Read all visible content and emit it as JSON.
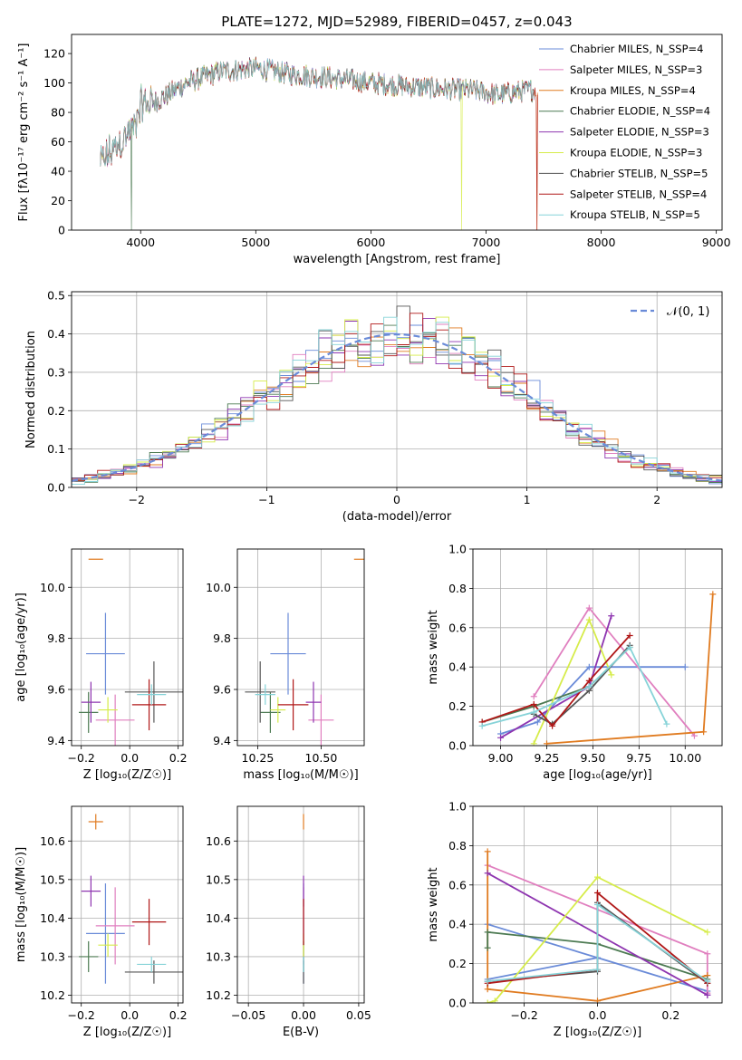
{
  "colors": {
    "Chabrier MILES": "#6a8bd8",
    "Salpeter MILES": "#e07fbf",
    "Kroupa MILES": "#e07b20",
    "Chabrier ELODIE": "#4c7a52",
    "Salpeter ELODIE": "#8e35b0",
    "Kroupa ELODIE": "#d6ec4a",
    "Chabrier STELIB": "#555555",
    "Salpeter STELIB": "#b01818",
    "Kroupa STELIB": "#86d3d8",
    "normal_curve": "#6a8bd8"
  },
  "chart_data": [
    {
      "id": "spectrum",
      "type": "line",
      "title": "PLATE=1272, MJD=52989, FIBERID=0457, z=0.043",
      "xlabel": "wavelength [Angstrom, rest frame]",
      "ylabel": "Flux [fλ10⁻¹⁷ erg cm⁻² s⁻¹ A⁻¹]",
      "xlim": [
        3400,
        9050
      ],
      "ylim": [
        0,
        133
      ],
      "xticks": [
        4000,
        5000,
        6000,
        7000,
        8000,
        9000
      ],
      "yticks": [
        0,
        20,
        40,
        60,
        80,
        100,
        120
      ],
      "legend_position": "upper right",
      "x_range": [
        3650,
        7450
      ],
      "continuum": [
        [
          3650,
          45
        ],
        [
          3800,
          58
        ],
        [
          3950,
          70
        ],
        [
          4000,
          85
        ],
        [
          4150,
          88
        ],
        [
          4400,
          100
        ],
        [
          4700,
          108
        ],
        [
          5000,
          110
        ],
        [
          5300,
          106
        ],
        [
          5600,
          104
        ],
        [
          6000,
          100
        ],
        [
          6300,
          98
        ],
        [
          6600,
          96
        ],
        [
          6900,
          95
        ],
        [
          7100,
          92
        ],
        [
          7450,
          96
        ]
      ],
      "dips": [
        [
          3920,
          0
        ],
        [
          4300,
          70
        ],
        [
          6790,
          0
        ],
        [
          7440,
          0
        ]
      ],
      "series": [
        {
          "name": "Chabrier MILES, N_SSP=4",
          "color": "Chabrier MILES"
        },
        {
          "name": "Salpeter MILES, N_SSP=3",
          "color": "Salpeter MILES"
        },
        {
          "name": "Kroupa MILES, N_SSP=4",
          "color": "Kroupa MILES"
        },
        {
          "name": "Chabrier ELODIE, N_SSP=4",
          "color": "Chabrier ELODIE"
        },
        {
          "name": "Salpeter ELODIE, N_SSP=3",
          "color": "Salpeter ELODIE"
        },
        {
          "name": "Kroupa ELODIE, N_SSP=3",
          "color": "Kroupa ELODIE"
        },
        {
          "name": "Chabrier STELIB, N_SSP=5",
          "color": "Chabrier STELIB"
        },
        {
          "name": "Salpeter STELIB, N_SSP=4",
          "color": "Salpeter STELIB"
        },
        {
          "name": "Kroupa STELIB, N_SSP=5",
          "color": "Kroupa STELIB"
        }
      ]
    },
    {
      "id": "residuals",
      "type": "step",
      "xlabel": "(data-model)/error",
      "ylabel": "Normed distribution",
      "xlim": [
        -2.5,
        2.5
      ],
      "ylim": [
        0,
        0.51
      ],
      "xticks": [
        -2,
        -1,
        0,
        1,
        2
      ],
      "yticks": [
        0.0,
        0.1,
        0.2,
        0.3,
        0.4,
        0.5
      ],
      "grid": true,
      "legend_position": "upper right",
      "normal_label": "𝒩(0, 1)",
      "bin_width": 0.1,
      "series_colors": [
        "Chabrier MILES",
        "Salpeter MILES",
        "Kroupa MILES",
        "Chabrier ELODIE",
        "Salpeter ELODIE",
        "Kroupa ELODIE",
        "Chabrier STELIB",
        "Salpeter STELIB",
        "Kroupa STELIB"
      ]
    },
    {
      "id": "age_vs_Z",
      "type": "errorbar",
      "xlabel": "Z [log₁₀(Z/Z☉)]",
      "ylabel": "age  [log₁₀(age/yr)]",
      "xlim": [
        -0.24,
        0.22
      ],
      "ylim": [
        9.38,
        10.15
      ],
      "xticks": [
        -0.2,
        0.0,
        0.2
      ],
      "yticks": [
        9.4,
        9.6,
        9.8,
        10.0
      ],
      "grid": true,
      "points": [
        {
          "color": "Chabrier MILES",
          "x": -0.1,
          "y": 9.74,
          "xerr": 0.08,
          "yerr": 0.16
        },
        {
          "color": "Salpeter MILES",
          "x": -0.06,
          "y": 9.48,
          "xerr": 0.08,
          "yerr": 0.1
        },
        {
          "color": "Kroupa MILES",
          "x": -0.14,
          "y": 10.11,
          "xerr": 0.03,
          "yerr": 0.0
        },
        {
          "color": "Chabrier ELODIE",
          "x": -0.17,
          "y": 9.51,
          "xerr": 0.04,
          "yerr": 0.08
        },
        {
          "color": "Salpeter ELODIE",
          "x": -0.16,
          "y": 9.55,
          "xerr": 0.04,
          "yerr": 0.08
        },
        {
          "color": "Kroupa ELODIE",
          "x": -0.09,
          "y": 9.52,
          "xerr": 0.04,
          "yerr": 0.05
        },
        {
          "color": "Chabrier STELIB",
          "x": 0.1,
          "y": 9.59,
          "xerr": 0.12,
          "yerr": 0.12
        },
        {
          "color": "Salpeter STELIB",
          "x": 0.08,
          "y": 9.54,
          "xerr": 0.07,
          "yerr": 0.1
        },
        {
          "color": "Kroupa STELIB",
          "x": 0.09,
          "y": 9.58,
          "xerr": 0.06,
          "yerr": 0.04
        }
      ]
    },
    {
      "id": "age_vs_mass",
      "type": "errorbar",
      "xlabel": "mass [log₁₀(M/M☉)]",
      "ylabel": "",
      "xlim": [
        10.17,
        10.67
      ],
      "ylim": [
        9.38,
        10.15
      ],
      "xticks": [
        10.25,
        10.5
      ],
      "yticks": [
        9.4,
        9.6,
        9.8,
        10.0
      ],
      "grid": true,
      "points": [
        {
          "color": "Chabrier MILES",
          "x": 10.37,
          "y": 9.74,
          "xerr": 0.07,
          "yerr": 0.16
        },
        {
          "color": "Salpeter MILES",
          "x": 10.5,
          "y": 9.48,
          "xerr": 0.05,
          "yerr": 0.1
        },
        {
          "color": "Kroupa MILES",
          "x": 10.65,
          "y": 10.11,
          "xerr": 0.02,
          "yerr": 0.0
        },
        {
          "color": "Chabrier ELODIE",
          "x": 10.3,
          "y": 9.51,
          "xerr": 0.04,
          "yerr": 0.08
        },
        {
          "color": "Salpeter ELODIE",
          "x": 10.47,
          "y": 9.55,
          "xerr": 0.03,
          "yerr": 0.08
        },
        {
          "color": "Kroupa ELODIE",
          "x": 10.33,
          "y": 9.52,
          "xerr": 0.03,
          "yerr": 0.05
        },
        {
          "color": "Chabrier STELIB",
          "x": 10.26,
          "y": 9.59,
          "xerr": 0.06,
          "yerr": 0.12
        },
        {
          "color": "Salpeter STELIB",
          "x": 10.39,
          "y": 9.54,
          "xerr": 0.06,
          "yerr": 0.1
        },
        {
          "color": "Kroupa STELIB",
          "x": 10.28,
          "y": 9.58,
          "xerr": 0.04,
          "yerr": 0.04
        }
      ]
    },
    {
      "id": "weight_vs_age",
      "type": "line",
      "xlabel": "age  [log₁₀(age/yr)]",
      "ylabel": "mass weight",
      "xlim": [
        8.85,
        10.2
      ],
      "ylim": [
        0,
        1
      ],
      "xticks": [
        9.0,
        9.25,
        9.5,
        9.75,
        10.0
      ],
      "yticks": [
        0.0,
        0.2,
        0.4,
        0.6,
        0.8,
        1.0
      ],
      "grid": true,
      "series": [
        {
          "color": "Chabrier MILES",
          "x": [
            9.0,
            9.2,
            9.48,
            10.0
          ],
          "y": [
            0.06,
            0.12,
            0.4,
            0.4
          ]
        },
        {
          "color": "Salpeter MILES",
          "x": [
            9.18,
            9.48,
            10.05
          ],
          "y": [
            0.25,
            0.7,
            0.05
          ]
        },
        {
          "color": "Kroupa MILES",
          "x": [
            9.25,
            10.1,
            10.15
          ],
          "y": [
            0.01,
            0.07,
            0.77
          ]
        },
        {
          "color": "Chabrier ELODIE",
          "x": [
            8.9,
            9.18,
            9.48,
            9.7
          ],
          "y": [
            0.12,
            0.2,
            0.3,
            0.5
          ]
        },
        {
          "color": "Salpeter ELODIE",
          "x": [
            9.0,
            9.48,
            9.6
          ],
          "y": [
            0.04,
            0.3,
            0.66
          ]
        },
        {
          "color": "Kroupa ELODIE",
          "x": [
            9.18,
            9.48,
            9.6
          ],
          "y": [
            0.01,
            0.64,
            0.36
          ]
        },
        {
          "color": "Chabrier STELIB",
          "x": [
            9.18,
            9.28,
            9.48,
            9.7
          ],
          "y": [
            0.16,
            0.11,
            0.28,
            0.51
          ]
        },
        {
          "color": "Salpeter STELIB",
          "x": [
            8.9,
            9.18,
            9.28,
            9.48,
            9.7
          ],
          "y": [
            0.12,
            0.21,
            0.1,
            0.33,
            0.56
          ]
        },
        {
          "color": "Kroupa STELIB",
          "x": [
            8.9,
            9.18,
            9.48,
            9.7,
            9.9
          ],
          "y": [
            0.1,
            0.17,
            0.3,
            0.5,
            0.11
          ]
        }
      ]
    },
    {
      "id": "mass_vs_Z",
      "type": "errorbar",
      "xlabel": "Z [log₁₀(Z/Z☉)]",
      "ylabel": "mass [log₁₀(M/M☉)]",
      "xlim": [
        -0.24,
        0.22
      ],
      "ylim": [
        10.18,
        10.69
      ],
      "xticks": [
        -0.2,
        0.0,
        0.2
      ],
      "yticks": [
        10.2,
        10.3,
        10.4,
        10.5,
        10.6
      ],
      "grid": true,
      "points": [
        {
          "color": "Chabrier MILES",
          "x": -0.1,
          "y": 10.36,
          "xerr": 0.08,
          "yerr": 0.13
        },
        {
          "color": "Salpeter MILES",
          "x": -0.06,
          "y": 10.38,
          "xerr": 0.08,
          "yerr": 0.1
        },
        {
          "color": "Kroupa MILES",
          "x": -0.14,
          "y": 10.65,
          "xerr": 0.03,
          "yerr": 0.02
        },
        {
          "color": "Chabrier ELODIE",
          "x": -0.17,
          "y": 10.3,
          "xerr": 0.04,
          "yerr": 0.04
        },
        {
          "color": "Salpeter ELODIE",
          "x": -0.16,
          "y": 10.47,
          "xerr": 0.04,
          "yerr": 0.04
        },
        {
          "color": "Kroupa ELODIE",
          "x": -0.09,
          "y": 10.33,
          "xerr": 0.04,
          "yerr": 0.03
        },
        {
          "color": "Chabrier STELIB",
          "x": 0.1,
          "y": 10.26,
          "xerr": 0.12,
          "yerr": 0.03
        },
        {
          "color": "Salpeter STELIB",
          "x": 0.08,
          "y": 10.39,
          "xerr": 0.07,
          "yerr": 0.06
        },
        {
          "color": "Kroupa STELIB",
          "x": 0.09,
          "y": 10.28,
          "xerr": 0.06,
          "yerr": 0.02
        }
      ]
    },
    {
      "id": "mass_vs_ebv",
      "type": "errorbar",
      "xlabel": "E(B-V)",
      "ylabel": "",
      "xlim": [
        -0.06,
        0.055
      ],
      "ylim": [
        10.18,
        10.69
      ],
      "xticks": [
        -0.05,
        0.0,
        0.05
      ],
      "yticks": [
        10.2,
        10.3,
        10.4,
        10.5,
        10.6
      ],
      "grid": true,
      "points": [
        {
          "color": "Chabrier MILES",
          "x": 0.0,
          "y": 10.36,
          "xerr": 0.0,
          "yerr": 0.13
        },
        {
          "color": "Salpeter MILES",
          "x": 0.0,
          "y": 10.38,
          "xerr": 0.0,
          "yerr": 0.1
        },
        {
          "color": "Kroupa MILES",
          "x": 0.0,
          "y": 10.65,
          "xerr": 0.0,
          "yerr": 0.02
        },
        {
          "color": "Chabrier ELODIE",
          "x": 0.0,
          "y": 10.3,
          "xerr": 0.0,
          "yerr": 0.04
        },
        {
          "color": "Salpeter ELODIE",
          "x": 0.0,
          "y": 10.47,
          "xerr": 0.0,
          "yerr": 0.04
        },
        {
          "color": "Kroupa ELODIE",
          "x": 0.0,
          "y": 10.33,
          "xerr": 0.0,
          "yerr": 0.03
        },
        {
          "color": "Chabrier STELIB",
          "x": 0.0,
          "y": 10.26,
          "xerr": 0.0,
          "yerr": 0.03
        },
        {
          "color": "Salpeter STELIB",
          "x": 0.0,
          "y": 10.39,
          "xerr": 0.0,
          "yerr": 0.06
        },
        {
          "color": "Kroupa STELIB",
          "x": 0.0,
          "y": 10.28,
          "xerr": 0.0,
          "yerr": 0.02
        }
      ]
    },
    {
      "id": "weight_vs_Z",
      "type": "line",
      "xlabel": "Z [log₁₀(Z/Z☉)]",
      "ylabel": "mass weight",
      "xlim": [
        -0.34,
        0.34
      ],
      "ylim": [
        0,
        1
      ],
      "xticks": [
        -0.2,
        0.0,
        0.2
      ],
      "yticks": [
        0.0,
        0.2,
        0.4,
        0.6,
        0.8,
        1.0
      ],
      "grid": true,
      "series": [
        {
          "color": "Chabrier MILES",
          "x": [
            -0.3,
            0.3,
            0.0,
            -0.3
          ],
          "y": [
            0.4,
            0.06,
            0.23,
            0.12
          ]
        },
        {
          "color": "Salpeter MILES",
          "x": [
            -0.3,
            0.3,
            0.3
          ],
          "y": [
            0.7,
            0.25,
            0.05
          ]
        },
        {
          "color": "Kroupa MILES",
          "x": [
            -0.3,
            -0.3,
            0.0,
            0.3
          ],
          "y": [
            0.77,
            0.07,
            0.01,
            0.14
          ]
        },
        {
          "color": "Chabrier ELODIE",
          "x": [
            -0.3,
            -0.3,
            0.0,
            0.3
          ],
          "y": [
            0.28,
            0.36,
            0.3,
            0.12
          ]
        },
        {
          "color": "Salpeter ELODIE",
          "x": [
            -0.3,
            0.3,
            0.3
          ],
          "y": [
            0.66,
            0.04,
            0.04
          ]
        },
        {
          "color": "Kroupa ELODIE",
          "x": [
            -0.3,
            -0.28,
            0.0,
            0.3
          ],
          "y": [
            0.0,
            0.01,
            0.64,
            0.36
          ]
        },
        {
          "color": "Chabrier STELIB",
          "x": [
            -0.3,
            0.0,
            0.0,
            0.3
          ],
          "y": [
            0.11,
            0.16,
            0.51,
            0.1
          ]
        },
        {
          "color": "Salpeter STELIB",
          "x": [
            -0.3,
            0.0,
            0.0,
            0.3
          ],
          "y": [
            0.1,
            0.17,
            0.56,
            0.1
          ]
        },
        {
          "color": "Kroupa STELIB",
          "x": [
            -0.3,
            0.0,
            0.0,
            0.3
          ],
          "y": [
            0.11,
            0.17,
            0.5,
            0.11
          ]
        }
      ]
    }
  ]
}
